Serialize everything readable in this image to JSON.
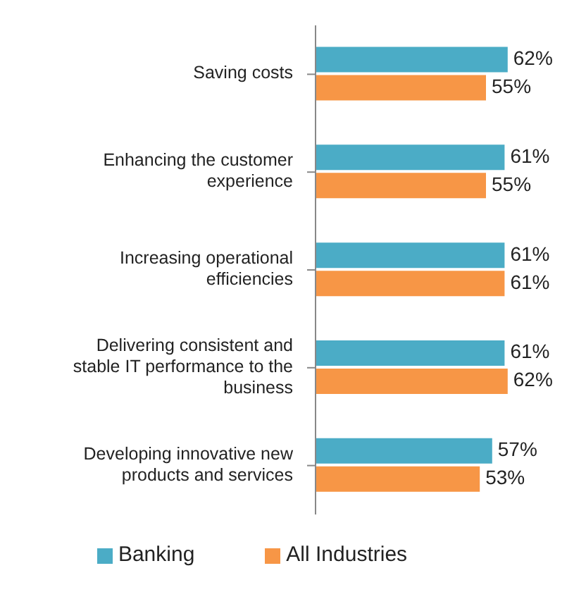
{
  "chart_data": {
    "type": "bar",
    "orientation": "horizontal",
    "categories": [
      "Saving costs",
      "Enhancing the customer experience",
      "Increasing operational efficiencies",
      "Delivering consistent and stable IT performance to the business",
      "Developing innovative new products and services"
    ],
    "series": [
      {
        "name": "Banking",
        "color": "#4bacc6",
        "values": [
          62,
          61,
          61,
          61,
          57
        ],
        "value_labels": [
          "62%",
          "61%",
          "61%",
          "61%",
          "57%"
        ]
      },
      {
        "name": "All Industries",
        "color": "#f79646",
        "values": [
          55,
          55,
          61,
          62,
          53
        ],
        "value_labels": [
          "55%",
          "55%",
          "61%",
          "62%",
          "53%"
        ]
      }
    ],
    "tick_labels": "y",
    "legend": "bottom"
  }
}
